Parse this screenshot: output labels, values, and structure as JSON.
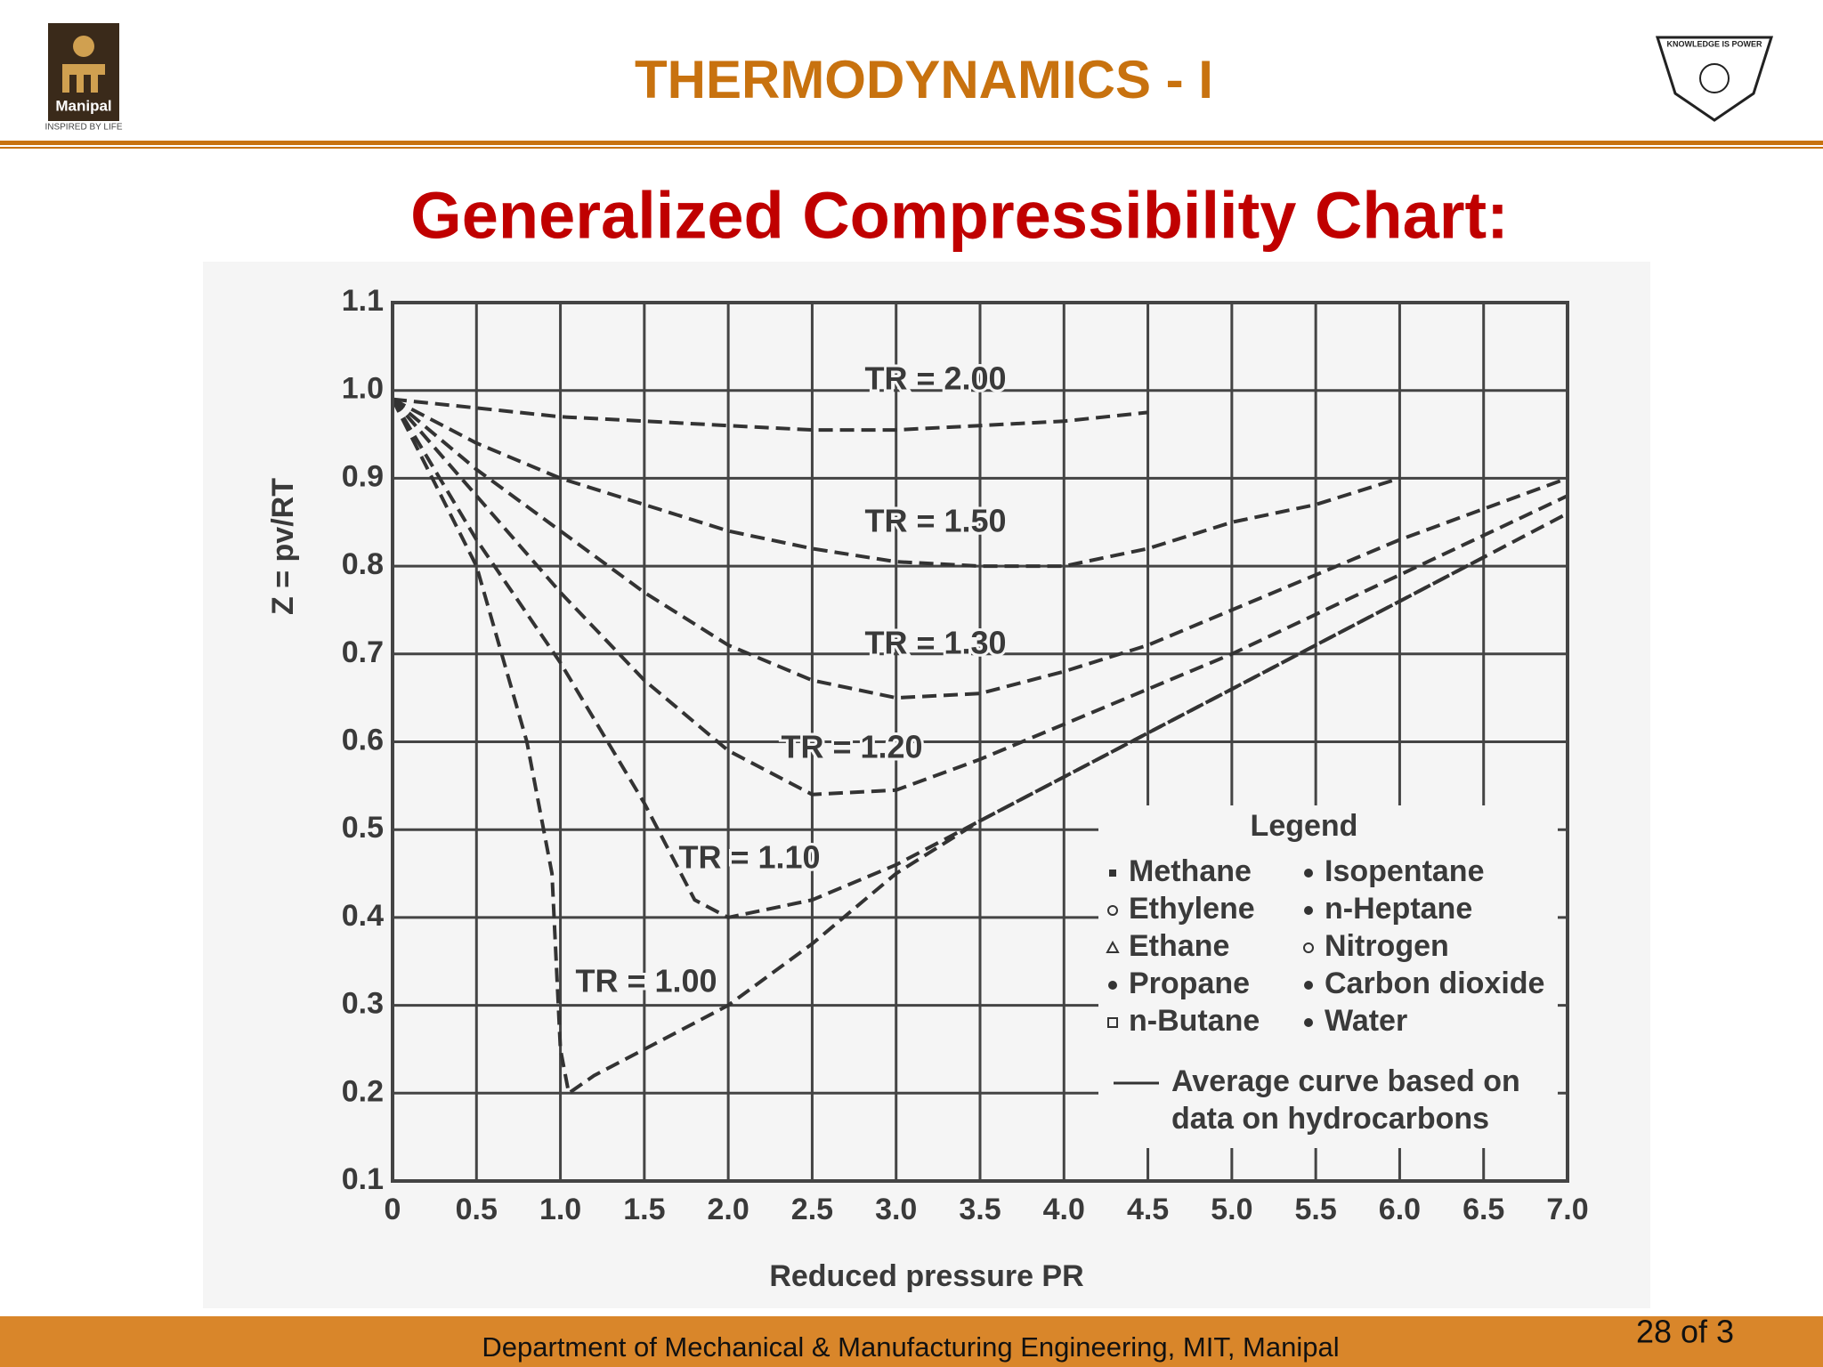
{
  "header": {
    "title": "THERMODYNAMICS - I",
    "left_logo": {
      "name": "Manipal",
      "tagline": "INSPIRED BY LIFE"
    },
    "right_logo": {
      "motto": "KNOWLEDGE IS POWER"
    }
  },
  "slide_title": "Generalized Compressibility Chart:",
  "footer": {
    "text": "Department of Mechanical & Manufacturing Engineering, MIT, Manipal",
    "page": "28 of 3"
  },
  "chart_data": {
    "type": "line",
    "xlabel": "Reduced pressure PR",
    "ylabel": "Z = pv/RT",
    "xlim": [
      0,
      7
    ],
    "ylim": [
      0.1,
      1.1
    ],
    "xticks": [
      0,
      0.5,
      {
        "value": 1,
        "label": "1.0"
      },
      1.5,
      {
        "value": 2,
        "label": "2.0"
      },
      2.5,
      {
        "value": 3,
        "label": "3.0"
      },
      3.5,
      {
        "value": 4,
        "label": "4.0"
      },
      4.5,
      {
        "value": 5,
        "label": "5.0"
      },
      5.5,
      {
        "value": 6,
        "label": "6.0"
      },
      6.5,
      {
        "value": 7,
        "label": "7.0"
      }
    ],
    "yticks": [
      0.1,
      0.2,
      0.3,
      0.4,
      0.5,
      0.6,
      0.7,
      0.8,
      0.9,
      {
        "value": 1,
        "label": "1.0"
      },
      1.1
    ],
    "grid": true,
    "series": [
      {
        "name": "TR = 2.00",
        "color": "#333333",
        "x": [
          0,
          0.5,
          1,
          1.5,
          2,
          2.5,
          3,
          3.5,
          4,
          4.5
        ],
        "values": [
          0.99,
          0.98,
          0.97,
          0.965,
          0.96,
          0.955,
          0.955,
          0.96,
          0.965,
          0.975
        ]
      },
      {
        "name": "TR = 1.50",
        "color": "#333333",
        "x": [
          0,
          0.5,
          1,
          1.5,
          2,
          2.5,
          3,
          3.5,
          4,
          4.5,
          5,
          5.5,
          6
        ],
        "values": [
          0.99,
          0.94,
          0.9,
          0.87,
          0.84,
          0.82,
          0.805,
          0.8,
          0.8,
          0.82,
          0.85,
          0.87,
          0.9
        ]
      },
      {
        "name": "TR = 1.30",
        "color": "#333333",
        "x": [
          0,
          0.5,
          1,
          1.5,
          2,
          2.5,
          3,
          3.5,
          4,
          4.5,
          5,
          5.5,
          6,
          6.5,
          7
        ],
        "values": [
          0.99,
          0.91,
          0.84,
          0.77,
          0.71,
          0.67,
          0.65,
          0.655,
          0.68,
          0.71,
          0.75,
          0.79,
          0.83,
          0.865,
          0.9
        ]
      },
      {
        "name": "TR = 1.20",
        "color": "#333333",
        "x": [
          0,
          0.5,
          1,
          1.5,
          2,
          2.5,
          3,
          3.5,
          4,
          4.5,
          5,
          5.5,
          6,
          6.5,
          7
        ],
        "values": [
          0.99,
          0.88,
          0.77,
          0.67,
          0.59,
          0.54,
          0.545,
          0.58,
          0.62,
          0.66,
          0.7,
          0.745,
          0.79,
          0.835,
          0.88
        ]
      },
      {
        "name": "TR = 1.10",
        "color": "#333333",
        "x": [
          0,
          0.5,
          1,
          1.5,
          1.8,
          2,
          2.5,
          3,
          3.5,
          4,
          4.5,
          5,
          5.5,
          6,
          6.5,
          7
        ],
        "values": [
          0.99,
          0.83,
          0.69,
          0.53,
          0.42,
          0.4,
          0.42,
          0.46,
          0.51,
          0.56,
          0.61,
          0.66,
          0.71,
          0.76,
          0.81,
          0.86
        ]
      },
      {
        "name": "TR = 1.00",
        "color": "#333333",
        "x": [
          0,
          0.5,
          0.8,
          0.95,
          1,
          1.05,
          1.2,
          1.5,
          2,
          2.5,
          3,
          3.5,
          4,
          4.5,
          5,
          5.5,
          6,
          6.5
        ],
        "values": [
          0.99,
          0.8,
          0.6,
          0.45,
          0.25,
          0.2,
          0.22,
          0.25,
          0.3,
          0.37,
          0.45,
          0.51,
          0.56,
          0.61,
          0.66,
          0.71,
          0.76,
          0.81
        ]
      }
    ],
    "legend": {
      "title": "Legend",
      "items": [
        "Methane",
        "Ethylene",
        "Ethane",
        "Propane",
        "n-Butane",
        "Isopentane",
        "n-Heptane",
        "Nitrogen",
        "Carbon dioxide",
        "Water"
      ],
      "note": [
        "Average curve based on",
        "data on hydrocarbons"
      ]
    }
  }
}
